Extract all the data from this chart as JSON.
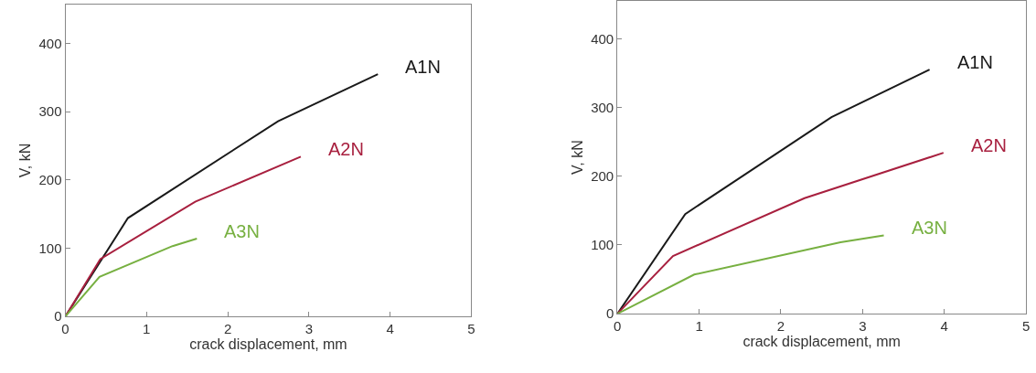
{
  "chart_data": [
    {
      "type": "line",
      "xlabel": "crack displacement, mm",
      "ylabel": "V, kN",
      "xlim": [
        0,
        5
      ],
      "ylim": [
        0,
        457
      ],
      "xticks": [
        0,
        1,
        2,
        3,
        4,
        5
      ],
      "yticks": [
        0,
        100,
        200,
        300,
        400
      ],
      "legend": false,
      "marker": "none",
      "line_style": "solid",
      "series": [
        {
          "name": "A1N",
          "color": "#1a1a1a",
          "x": [
            0,
            0.77,
            2.62,
            3.85
          ],
          "values": [
            0,
            144,
            286,
            355
          ]
        },
        {
          "name": "A2N",
          "color": "#a8203f",
          "x": [
            0,
            0.43,
            1.6,
            2.9
          ],
          "values": [
            0,
            84,
            168,
            234
          ]
        },
        {
          "name": "A3N",
          "color": "#77b041",
          "x": [
            0,
            0.42,
            1.32,
            1.62
          ],
          "values": [
            0,
            58,
            103,
            114
          ]
        }
      ]
    },
    {
      "type": "line",
      "xlabel": "crack displacement, mm",
      "ylabel": "V, kN",
      "xlim": [
        0,
        5
      ],
      "ylim": [
        0,
        455
      ],
      "xticks": [
        0,
        1,
        2,
        3,
        4,
        5
      ],
      "yticks": [
        0,
        100,
        200,
        300,
        400
      ],
      "legend": false,
      "marker": "none",
      "line_style": "solid",
      "series": [
        {
          "name": "A1N",
          "color": "#1a1a1a",
          "x": [
            0,
            0.83,
            2.62,
            3.82
          ],
          "values": [
            0,
            145,
            286,
            355
          ]
        },
        {
          "name": "A2N",
          "color": "#a8203f",
          "x": [
            0,
            0.68,
            2.29,
            3.99
          ],
          "values": [
            0,
            84,
            168,
            234
          ]
        },
        {
          "name": "A3N",
          "color": "#77b041",
          "x": [
            0,
            0.94,
            2.73,
            3.26
          ],
          "values": [
            0,
            57,
            104,
            114
          ]
        }
      ]
    }
  ]
}
